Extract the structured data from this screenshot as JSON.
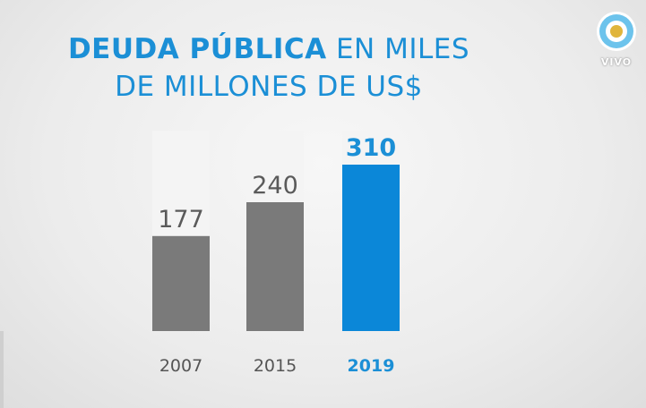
{
  "title": {
    "line1_bold": "DEUDA PÚBLICA",
    "line1_rest": " EN MILES",
    "line2": "DE MILLONES DE US$"
  },
  "logo": {
    "text": "VIVO",
    "icon": "argentina-sun-logo-icon"
  },
  "colors": {
    "accent": "#1b8fd6",
    "bar_gray": "#7a7a7a",
    "bar_blue": "#0b87d8",
    "track": "#f4f4f4"
  },
  "chart_data": {
    "type": "bar",
    "categories": [
      "2007",
      "2015",
      "2019"
    ],
    "values": [
      177,
      240,
      310
    ],
    "data_labels": [
      "177",
      "240",
      "310"
    ],
    "highlight_index": 2,
    "ylim": [
      0,
      320
    ],
    "title": "DEUDA PÚBLICA EN MILES DE MILLONES DE US$",
    "xlabel": "",
    "ylabel": "",
    "grid": false
  }
}
